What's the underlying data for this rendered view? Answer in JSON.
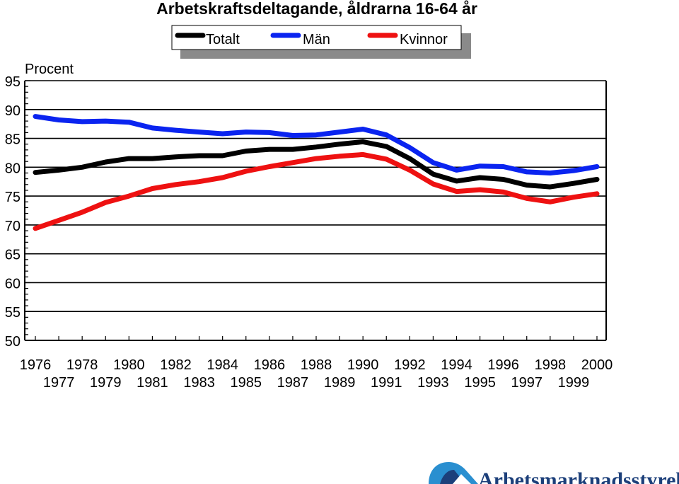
{
  "chart_data": {
    "type": "line",
    "title": "Arbetskraftsdeltagande, åldrarna 16-64 år",
    "ylabel": "Procent",
    "xlabel": "",
    "ylim": [
      50,
      95
    ],
    "yticks": [
      "50",
      "55",
      "60",
      "65",
      "70",
      "75",
      "80",
      "85",
      "90",
      "95"
    ],
    "grid": true,
    "legend_position": "top",
    "x": [
      1976,
      1977,
      1978,
      1979,
      1980,
      1981,
      1982,
      1983,
      1984,
      1985,
      1986,
      1987,
      1988,
      1989,
      1990,
      1991,
      1992,
      1993,
      1994,
      1995,
      1996,
      1997,
      1998,
      1999,
      2000
    ],
    "x_tick_labels_row1": [
      "1976",
      "1978",
      "1980",
      "1982",
      "1984",
      "1986",
      "1988",
      "1990",
      "1992",
      "1994",
      "1996",
      "1998",
      "2000"
    ],
    "x_tick_labels_row2": [
      "1977",
      "1979",
      "1981",
      "1983",
      "1985",
      "1987",
      "1989",
      "1991",
      "1993",
      "1995",
      "1997",
      "1999"
    ],
    "series": [
      {
        "name": "Totalt",
        "color": "#000000",
        "values": [
          79.1,
          79.5,
          80.0,
          80.9,
          81.5,
          81.5,
          81.8,
          82.0,
          82.0,
          82.8,
          83.1,
          83.1,
          83.5,
          84.0,
          84.4,
          83.6,
          81.5,
          78.8,
          77.6,
          78.2,
          77.9,
          76.9,
          76.6,
          77.2,
          77.9
        ]
      },
      {
        "name": "Män",
        "color": "#0a24f0",
        "values": [
          88.8,
          88.2,
          87.9,
          88.0,
          87.8,
          86.8,
          86.4,
          86.1,
          85.8,
          86.1,
          86.0,
          85.5,
          85.6,
          86.1,
          86.6,
          85.6,
          83.4,
          80.8,
          79.5,
          80.2,
          80.1,
          79.2,
          79.0,
          79.4,
          80.1
        ]
      },
      {
        "name": "Kvinnor",
        "color": "#ee1111",
        "values": [
          69.4,
          70.8,
          72.2,
          73.9,
          75.0,
          76.3,
          77.0,
          77.5,
          78.2,
          79.3,
          80.1,
          80.8,
          81.5,
          81.9,
          82.2,
          81.4,
          79.5,
          77.1,
          75.8,
          76.1,
          75.7,
          74.6,
          74.0,
          74.8,
          75.4
        ]
      }
    ]
  },
  "logo": {
    "text": "Arbetsmarknadsstyrelsen",
    "colors": {
      "primary": "#1c3f7a",
      "accent": "#2a8fd0"
    }
  }
}
